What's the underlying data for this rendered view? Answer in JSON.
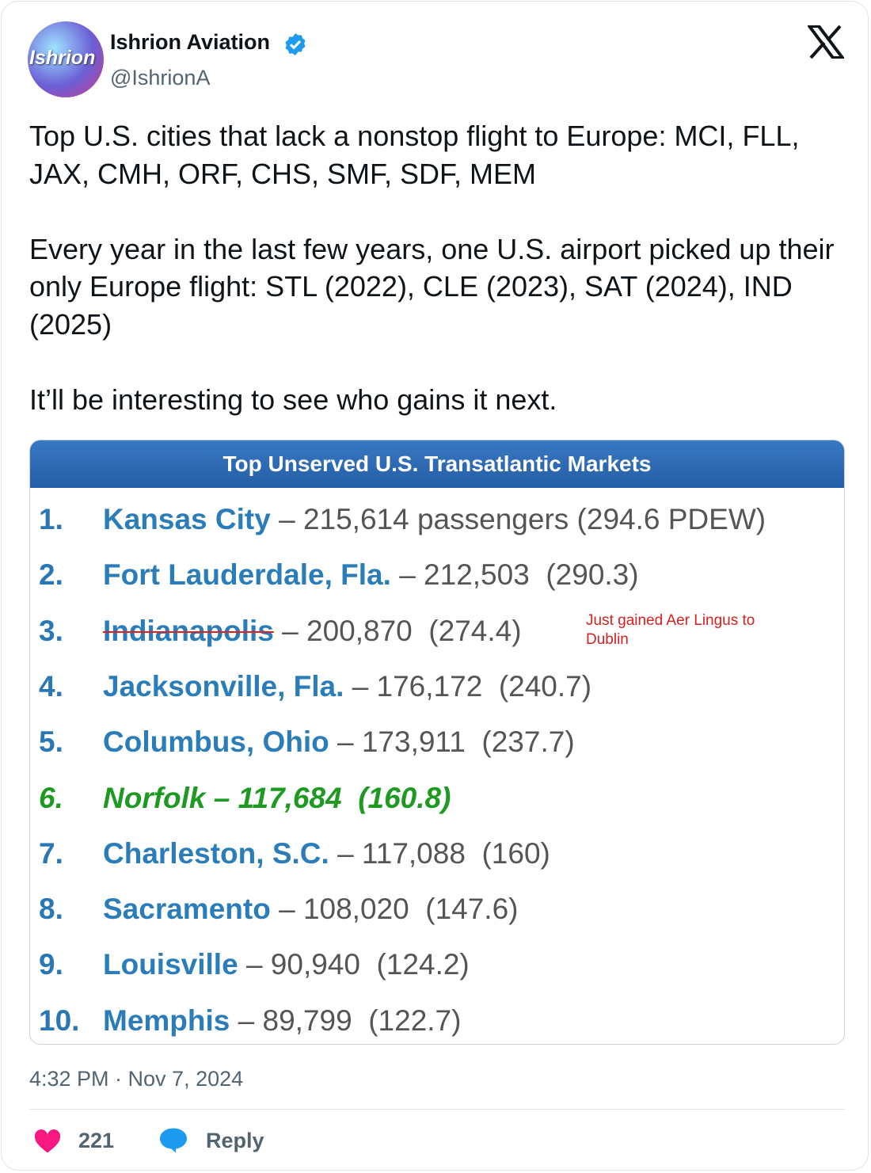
{
  "author": {
    "avatar_text": "Ishrion",
    "name": "Ishrion Aviation",
    "handle": "@IshrionA"
  },
  "body": {
    "paragraphs": [
      "Top U.S. cities that lack a nonstop flight to Europe: MCI, FLL, JAX, CMH, ORF, CHS, SMF, SDF, MEM",
      "Every year in the last few years, one U.S. airport picked up their only Europe flight: STL (2022), CLE (2023), SAT (2024), IND (2025)",
      "It’ll be interesting to see who gains it next."
    ]
  },
  "table": {
    "title": "Top Unserved U.S. Transatlantic Markets",
    "rows": [
      {
        "rank": "1.",
        "city": "Kansas City",
        "detail": "– 215,614 passengers (294.6 PDEW)"
      },
      {
        "rank": "2.",
        "city": "Fort Lauderdale, Fla.",
        "detail": "– 212,503  (290.3)"
      },
      {
        "rank": "3.",
        "city": "Indianapolis",
        "detail": "– 200,870  (274.4)"
      },
      {
        "rank": "4.",
        "city": "Jacksonville, Fla.",
        "detail": "– 176,172  (240.7)"
      },
      {
        "rank": "5.",
        "city": "Columbus, Ohio",
        "detail": "– 173,911  (237.7)"
      },
      {
        "rank": "6.",
        "city": "Norfolk",
        "detail": "– 117,684  (160.8)"
      },
      {
        "rank": "7.",
        "city": "Charleston, S.C.",
        "detail": "– 117,088  (160)"
      },
      {
        "rank": "8.",
        "city": "Sacramento",
        "detail": "– 108,020  (147.6)"
      },
      {
        "rank": "9.",
        "city": "Louisville",
        "detail": "– 90,940  (124.2)"
      },
      {
        "rank": "10.",
        "city": "Memphis",
        "detail": "– 89,799  (122.7)"
      }
    ],
    "annotation": "Just gained Aer Lingus to Dublin"
  },
  "footer": {
    "timestamp": "4:32 PM · Nov 7, 2024",
    "likes": "221",
    "reply": "Reply"
  }
}
